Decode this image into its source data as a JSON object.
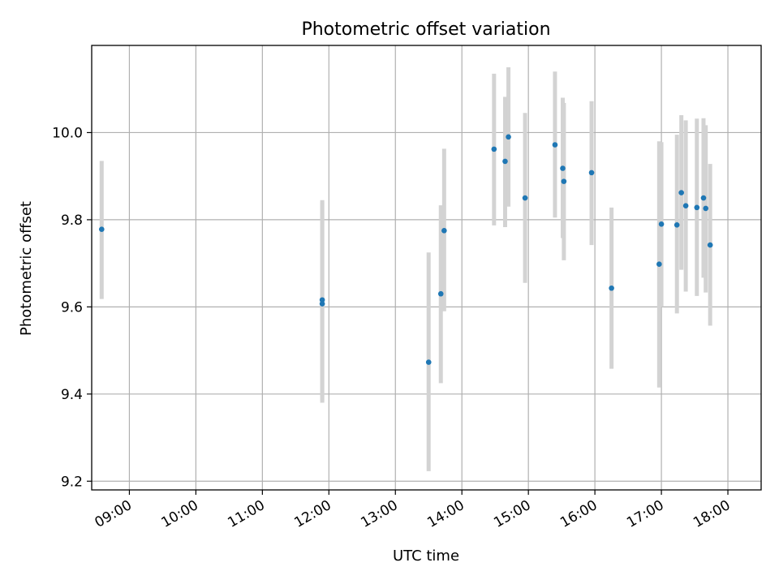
{
  "chart_data": {
    "type": "scatter",
    "title": "Photometric offset variation",
    "xlabel": "UTC time",
    "ylabel": "Photometric offset",
    "x_tick_labels": [
      "09:00",
      "10:00",
      "11:00",
      "12:00",
      "13:00",
      "14:00",
      "15:00",
      "16:00",
      "17:00",
      "18:00"
    ],
    "y_tick_labels": [
      "9.2",
      "9.4",
      "9.6",
      "9.8",
      "10.0"
    ],
    "xlim": [
      "08:26",
      "18:30"
    ],
    "ylim": [
      9.18,
      10.2
    ],
    "grid": true,
    "colors": {
      "point": "#1f77b4",
      "errorbar": "#d3d3d3",
      "grid": "#b0b0b0"
    },
    "points": [
      {
        "x": "08:35",
        "y": 9.778,
        "err_low": 9.618,
        "err_high": 9.935
      },
      {
        "x": "11:54",
        "y": 9.616,
        "err_low": 9.38,
        "err_high": 9.845
      },
      {
        "x": "11:54",
        "y": 9.607,
        "err_low": 9.385,
        "err_high": 9.84
      },
      {
        "x": "13:30",
        "y": 9.473,
        "err_low": 9.223,
        "err_high": 9.725
      },
      {
        "x": "13:41",
        "y": 9.63,
        "err_low": 9.425,
        "err_high": 9.833
      },
      {
        "x": "13:44",
        "y": 9.775,
        "err_low": 9.59,
        "err_high": 9.963
      },
      {
        "x": "14:29",
        "y": 9.962,
        "err_low": 9.787,
        "err_high": 10.135
      },
      {
        "x": "14:39",
        "y": 9.934,
        "err_low": 9.783,
        "err_high": 10.082
      },
      {
        "x": "14:42",
        "y": 9.99,
        "err_low": 9.83,
        "err_high": 10.15
      },
      {
        "x": "14:57",
        "y": 9.85,
        "err_low": 9.655,
        "err_high": 10.045
      },
      {
        "x": "15:24",
        "y": 9.972,
        "err_low": 9.805,
        "err_high": 10.14
      },
      {
        "x": "15:31",
        "y": 9.918,
        "err_low": 9.758,
        "err_high": 10.08
      },
      {
        "x": "15:32",
        "y": 9.888,
        "err_low": 9.707,
        "err_high": 10.068
      },
      {
        "x": "15:57",
        "y": 9.908,
        "err_low": 9.742,
        "err_high": 10.072
      },
      {
        "x": "16:15",
        "y": 9.643,
        "err_low": 9.458,
        "err_high": 9.828
      },
      {
        "x": "16:58",
        "y": 9.698,
        "err_low": 9.415,
        "err_high": 9.98
      },
      {
        "x": "17:00",
        "y": 9.79,
        "err_low": 9.6,
        "err_high": 9.978
      },
      {
        "x": "17:14",
        "y": 9.788,
        "err_low": 9.585,
        "err_high": 9.995
      },
      {
        "x": "17:18",
        "y": 9.862,
        "err_low": 9.685,
        "err_high": 10.04
      },
      {
        "x": "17:22",
        "y": 9.832,
        "err_low": 9.635,
        "err_high": 10.028
      },
      {
        "x": "17:32",
        "y": 9.828,
        "err_low": 9.625,
        "err_high": 10.032
      },
      {
        "x": "17:38",
        "y": 9.85,
        "err_low": 9.667,
        "err_high": 10.033
      },
      {
        "x": "17:40",
        "y": 9.826,
        "err_low": 9.633,
        "err_high": 10.017
      },
      {
        "x": "17:44",
        "y": 9.742,
        "err_low": 9.557,
        "err_high": 9.928
      }
    ]
  }
}
